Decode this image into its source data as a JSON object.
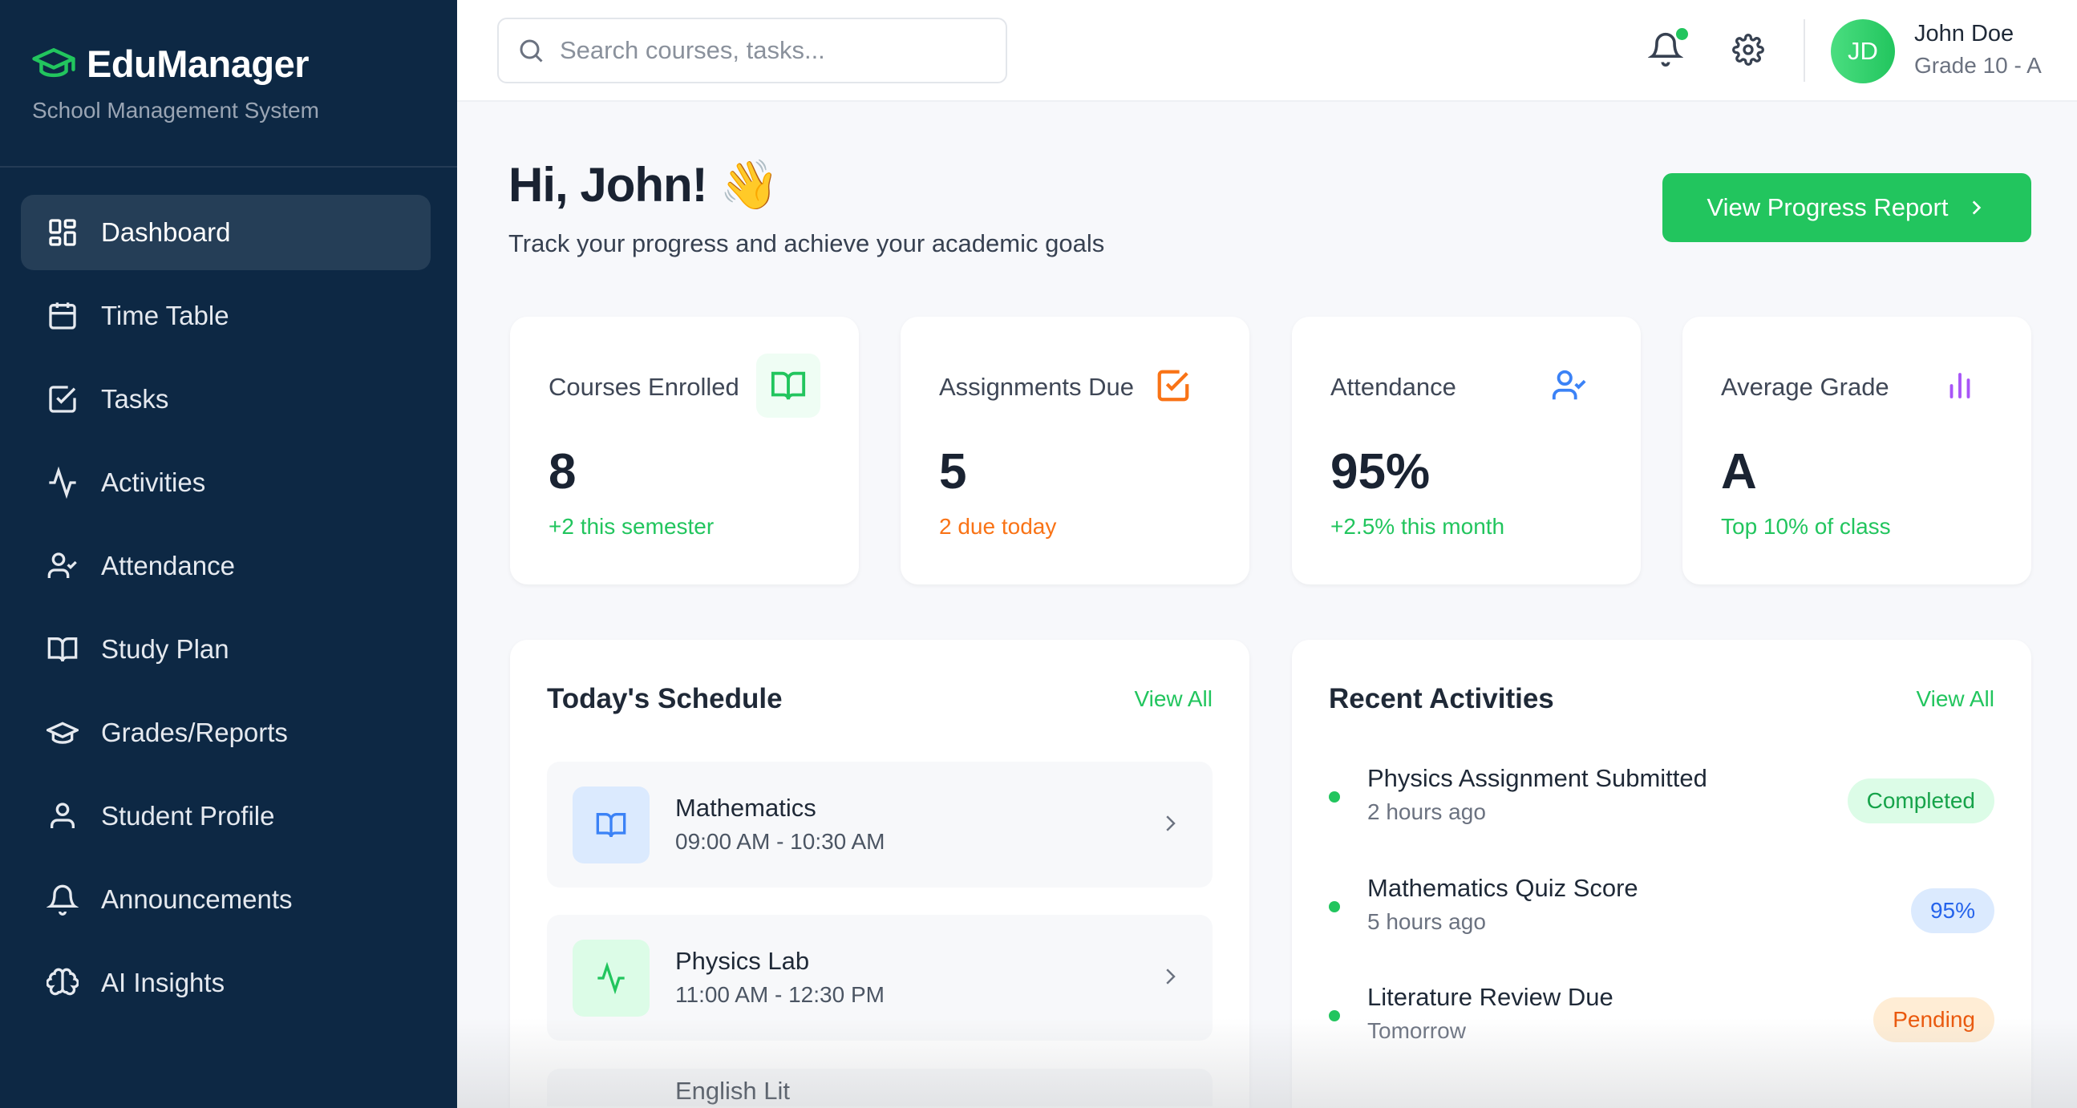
{
  "brand": {
    "title": "EduManager",
    "subtitle": "School Management System"
  },
  "sidebar": {
    "items": [
      {
        "label": "Dashboard",
        "icon": "dashboard-icon",
        "active": true
      },
      {
        "label": "Time Table",
        "icon": "calendar-icon"
      },
      {
        "label": "Tasks",
        "icon": "checkbox-icon"
      },
      {
        "label": "Activities",
        "icon": "activity-icon"
      },
      {
        "label": "Attendance",
        "icon": "user-check-icon"
      },
      {
        "label": "Study Plan",
        "icon": "book-icon"
      },
      {
        "label": "Grades/Reports",
        "icon": "graduation-cap-icon"
      },
      {
        "label": "Student Profile",
        "icon": "user-icon"
      },
      {
        "label": "Announcements",
        "icon": "bell-icon"
      },
      {
        "label": "AI Insights",
        "icon": "brain-icon"
      }
    ]
  },
  "header": {
    "search_placeholder": "Search courses, tasks...",
    "user": {
      "initials": "JD",
      "name": "John Doe",
      "grade": "Grade 10 - A"
    }
  },
  "main": {
    "greeting": "Hi, John! 👋",
    "subtitle": "Track your progress and achieve your academic goals",
    "report_button": "View Progress Report",
    "stats": [
      {
        "label": "Courses Enrolled",
        "value": "8",
        "sub": "+2 this semester",
        "color": "#22c55e"
      },
      {
        "label": "Assignments Due",
        "value": "5",
        "sub": "2 due today",
        "color": "#f97316"
      },
      {
        "label": "Attendance",
        "value": "95%",
        "sub": "+2.5% this month",
        "color": "#22c55e"
      },
      {
        "label": "Average Grade",
        "value": "A",
        "sub": "Top 10% of class",
        "color": "#22c55e"
      }
    ],
    "schedule": {
      "title": "Today's Schedule",
      "view_all": "View All",
      "items": [
        {
          "title": "Mathematics",
          "time": "09:00 AM - 10:30 AM"
        },
        {
          "title": "Physics Lab",
          "time": "11:00 AM - 12:30 PM"
        },
        {
          "title": "English Lit",
          "time": ""
        }
      ]
    },
    "activities": {
      "title": "Recent Activities",
      "view_all": "View All",
      "items": [
        {
          "title": "Physics Assignment Submitted",
          "time": "2 hours ago",
          "badge": "Completed"
        },
        {
          "title": "Mathematics Quiz Score",
          "time": "5 hours ago",
          "badge": "95%"
        },
        {
          "title": "Literature Review Due",
          "time": "Tomorrow",
          "badge": "Pending"
        }
      ]
    }
  },
  "colors": {
    "sidebar": "#0d2844",
    "accent": "#22c55e",
    "orange": "#f97316",
    "blue": "#3b82f6",
    "purple": "#a855f7"
  }
}
